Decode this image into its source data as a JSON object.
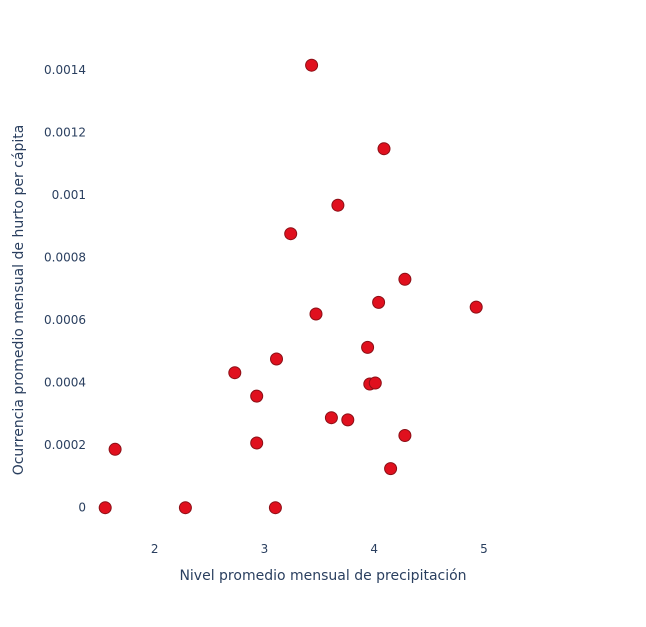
{
  "chart_data": {
    "type": "scatter",
    "xlabel": "Nivel promedio mensual de precipitación",
    "ylabel": "Ocurrencia promedio mensual de hurto per cápita",
    "xlim": [
      1.32,
      5.93
    ],
    "ylim": [
      -0.000113,
      0.001532
    ],
    "grid": false,
    "x_ticks": [
      {
        "value": 2,
        "label": "2"
      },
      {
        "value": 3,
        "label": "3"
      },
      {
        "value": 4,
        "label": "4"
      },
      {
        "value": 5,
        "label": "5"
      }
    ],
    "y_ticks": [
      {
        "value": 0,
        "label": "0"
      },
      {
        "value": 0.0002,
        "label": "0.0002"
      },
      {
        "value": 0.0004,
        "label": "0.0004"
      },
      {
        "value": 0.0006,
        "label": "0.0006"
      },
      {
        "value": 0.0008,
        "label": "0.0008"
      },
      {
        "value": 0.001,
        "label": "0.001"
      },
      {
        "value": 0.0012,
        "label": "0.0012"
      },
      {
        "value": 0.0014,
        "label": "0.0014"
      }
    ],
    "points": [
      {
        "x": 1.55,
        "y": 0.0
      },
      {
        "x": 1.64,
        "y": 0.000187
      },
      {
        "x": 2.28,
        "y": 0.0
      },
      {
        "x": 2.73,
        "y": 0.000432
      },
      {
        "x": 2.93,
        "y": 0.000357
      },
      {
        "x": 2.93,
        "y": 0.000207
      },
      {
        "x": 3.1,
        "y": 0.0
      },
      {
        "x": 3.11,
        "y": 0.000476
      },
      {
        "x": 3.24,
        "y": 0.000877
      },
      {
        "x": 3.43,
        "y": 0.001416
      },
      {
        "x": 3.47,
        "y": 0.00062
      },
      {
        "x": 3.61,
        "y": 0.000288
      },
      {
        "x": 3.67,
        "y": 0.000968
      },
      {
        "x": 3.76,
        "y": 0.000281
      },
      {
        "x": 3.94,
        "y": 0.000513
      },
      {
        "x": 3.96,
        "y": 0.000396
      },
      {
        "x": 4.01,
        "y": 0.000399
      },
      {
        "x": 4.04,
        "y": 0.000657
      },
      {
        "x": 4.09,
        "y": 0.001149
      },
      {
        "x": 4.15,
        "y": 0.000125
      },
      {
        "x": 4.28,
        "y": 0.000231
      },
      {
        "x": 4.28,
        "y": 0.000731
      },
      {
        "x": 4.93,
        "y": 0.000642
      }
    ]
  },
  "colors": {
    "marker_fill": "#e0101e",
    "marker_outline": "#8b0f16",
    "text": "#2a3f5f",
    "background": "#ffffff"
  }
}
